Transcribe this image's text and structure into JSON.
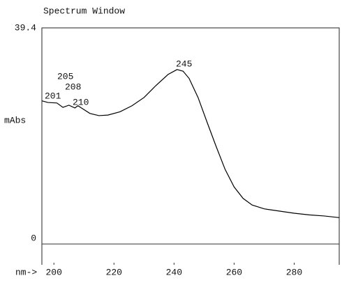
{
  "chart_data": {
    "type": "line",
    "title": "Spectrum Window",
    "x_label": "nm->",
    "y_label": "mAbs",
    "x": [
      196,
      198,
      201,
      203,
      205,
      207,
      208,
      210,
      212,
      215,
      218,
      222,
      226,
      230,
      234,
      238,
      241,
      243,
      245,
      248,
      251,
      254,
      257,
      260,
      263,
      266,
      270,
      275,
      280,
      285,
      290,
      295
    ],
    "series": [
      {
        "color": "#000000",
        "values": [
          26.1,
          25.8,
          25.7,
          24.9,
          25.3,
          24.8,
          25.2,
          24.5,
          23.8,
          23.4,
          23.5,
          24.1,
          25.2,
          26.7,
          28.9,
          30.9,
          31.8,
          31.5,
          30.2,
          26.7,
          22.2,
          17.8,
          13.6,
          10.4,
          8.3,
          7.1,
          6.4,
          6.0,
          5.6,
          5.3,
          5.1,
          4.8
        ]
      }
    ],
    "annotations": [
      "201",
      "205",
      "208",
      "210",
      "245"
    ],
    "xlim": [
      196,
      295
    ],
    "ylim": [
      -3.8,
      39.4
    ],
    "xticks": [
      200,
      220,
      240,
      260,
      280
    ],
    "yticks": [
      39.4,
      0
    ]
  }
}
